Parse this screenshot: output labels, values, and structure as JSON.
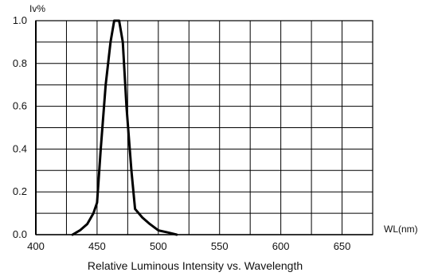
{
  "chart_data": {
    "type": "line",
    "title": "Relative Luminous Intensity vs. Wavelength",
    "xlabel": "WL(nm)",
    "ylabel": "Iv%",
    "xlim": [
      400,
      675
    ],
    "ylim": [
      0,
      1.0
    ],
    "xticks": [
      400,
      450,
      500,
      550,
      600,
      650
    ],
    "xtick_labels": [
      "400",
      "450",
      "500",
      "550",
      "600",
      "650"
    ],
    "yticks": [
      0,
      0.2,
      0.4,
      0.6,
      0.8,
      1.0
    ],
    "ytick_labels": [
      "0.0",
      "0.2",
      "0.4",
      "0.6",
      "0.8",
      "1.0"
    ],
    "grid": true,
    "series": [
      {
        "color": "#000000",
        "points": [
          [
            430,
            0.0
          ],
          [
            436,
            0.02
          ],
          [
            442,
            0.05
          ],
          [
            447,
            0.1
          ],
          [
            450,
            0.15
          ],
          [
            453,
            0.4
          ],
          [
            457,
            0.7
          ],
          [
            461,
            0.9
          ],
          [
            464,
            1.0
          ],
          [
            468,
            1.0
          ],
          [
            471,
            0.9
          ],
          [
            474,
            0.6
          ],
          [
            478,
            0.3
          ],
          [
            481,
            0.12
          ],
          [
            487,
            0.08
          ],
          [
            493,
            0.05
          ],
          [
            500,
            0.02
          ],
          [
            508,
            0.01
          ],
          [
            515,
            0.0
          ]
        ]
      }
    ]
  }
}
